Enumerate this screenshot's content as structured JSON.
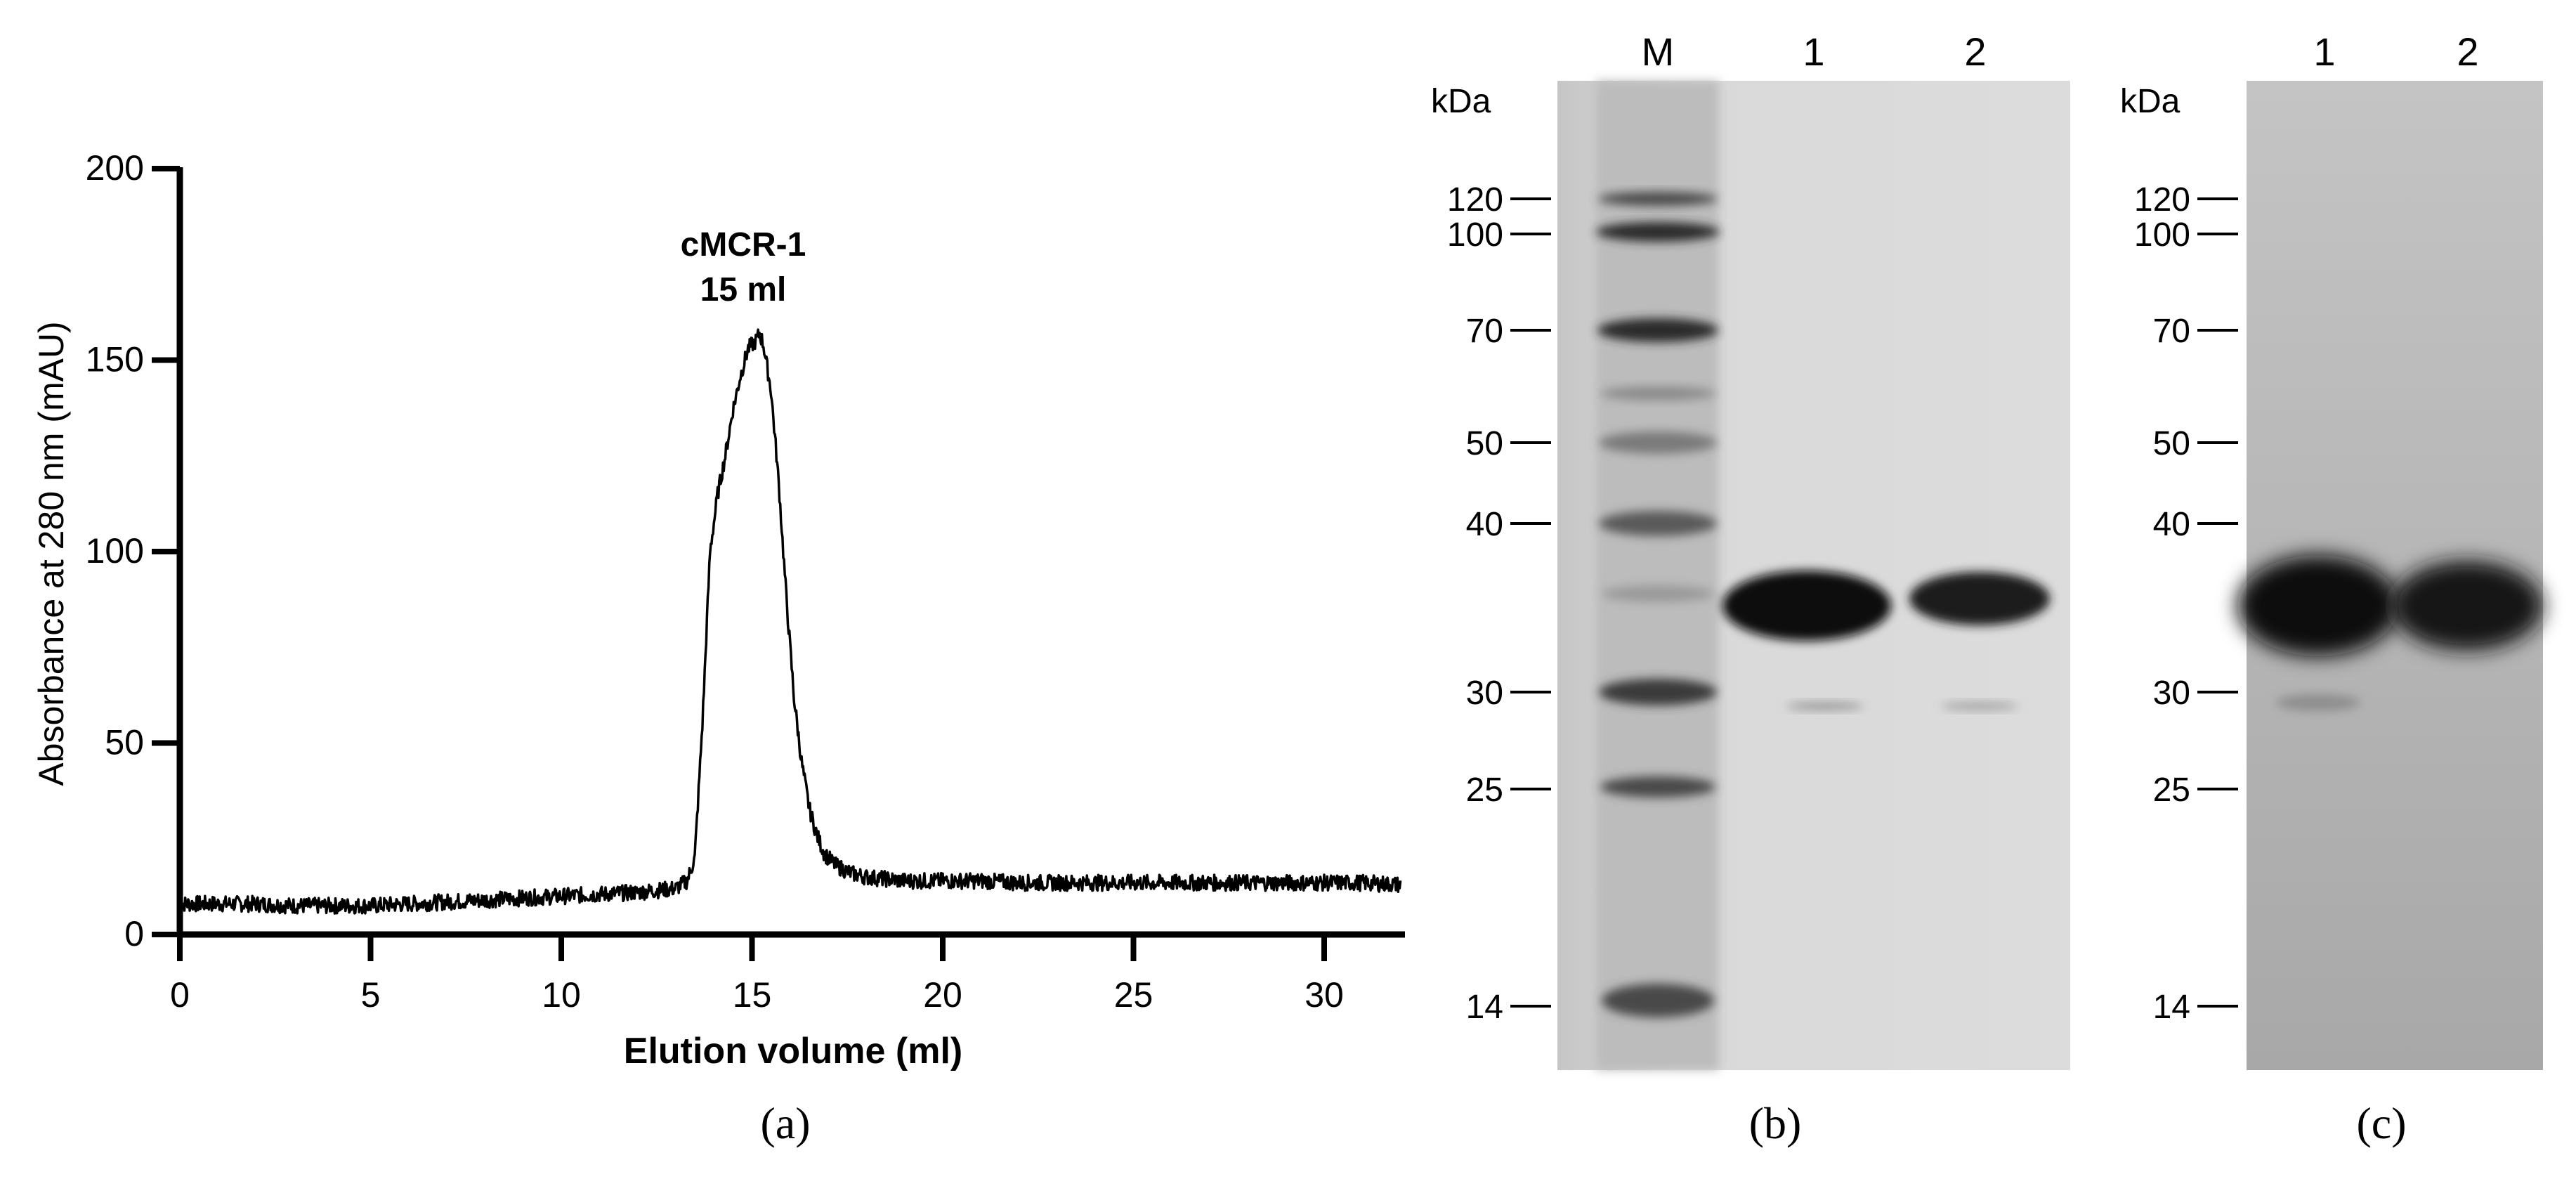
{
  "chart_data": [
    {
      "type": "line",
      "panel_label": "(a)",
      "annotation": {
        "text_line1": "cMCR-1",
        "text_line2": "15 ml",
        "x": 15.2,
        "y": 157
      },
      "xlabel": "Elution volume (ml)",
      "ylabel": "Absorbance at 280 nm (mAU)",
      "xlim": [
        0,
        32.2
      ],
      "ylim": [
        0,
        200
      ],
      "xticks": [
        0,
        5,
        10,
        15,
        20,
        25,
        30
      ],
      "yticks": [
        0,
        50,
        100,
        150,
        200
      ],
      "grid": false,
      "series": [
        {
          "x": [
            0,
            1,
            2,
            3,
            4,
            5,
            6,
            7,
            8,
            9,
            10,
            11,
            12,
            13,
            13.3,
            13.5,
            13.7,
            13.9,
            14.1,
            14.3,
            14.5,
            14.7,
            14.9,
            15.1,
            15.2,
            15.3,
            15.5,
            15.7,
            15.9,
            16.1,
            16.3,
            16.5,
            16.7,
            16.9,
            17.2,
            17.6,
            18,
            19,
            20,
            21,
            22,
            23,
            24,
            25,
            26,
            27,
            28,
            29,
            30,
            31,
            32
          ],
          "y": [
            8,
            8,
            8,
            7.5,
            7.5,
            7.5,
            8,
            8.5,
            9,
            9.5,
            10,
            10.5,
            11,
            12,
            14,
            20,
            55,
            100,
            115,
            125,
            137,
            146,
            153,
            155,
            157,
            154,
            142,
            118,
            88,
            62,
            45,
            33,
            26,
            21,
            18,
            16,
            15,
            14,
            14,
            14,
            13.5,
            13.5,
            13.5,
            13.5,
            13.5,
            13.5,
            13.5,
            13.5,
            13.5,
            13.5,
            13
          ]
        }
      ]
    },
    {
      "type": "gel",
      "panel_label": "(b)",
      "unit_label": "kDa",
      "lane_labels": [
        "M",
        "1",
        "2"
      ],
      "markers": [
        "120",
        "100",
        "70",
        "50",
        "40",
        "30",
        "25",
        "14"
      ]
    },
    {
      "type": "gel",
      "panel_label": "(c)",
      "unit_label": "kDa",
      "lane_labels": [
        "1",
        "2"
      ],
      "markers": [
        "120",
        "100",
        "70",
        "50",
        "40",
        "30",
        "25",
        "14"
      ]
    }
  ]
}
